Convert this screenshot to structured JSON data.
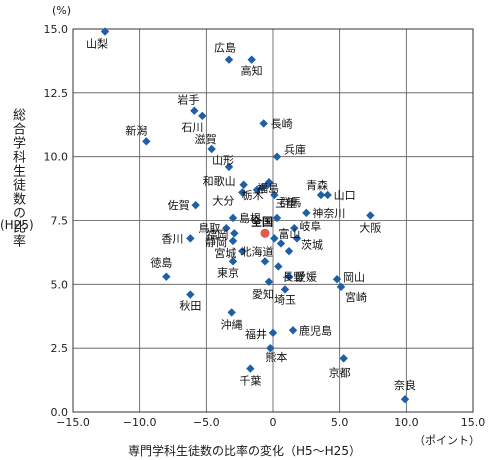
{
  "chart_data": {
    "type": "scatter",
    "xlabel": "専門学科生徒数の比率の変化（H5～H25）",
    "xunit": "（ポイント）",
    "ylabel": "総合学科生徒数の比率",
    "ylabel_sub": "(H25)",
    "yunit": "(%)",
    "xlim": [
      -15,
      15
    ],
    "ylim": [
      0,
      15
    ],
    "xticks": [
      -15,
      -10,
      -5,
      0,
      5,
      10,
      15
    ],
    "yticks": [
      0,
      2.5,
      5,
      7.5,
      10,
      12.5,
      15
    ],
    "xtick_labels": [
      "−15.0",
      "−10.0",
      "−5.0",
      "0",
      "5.0",
      "10.0",
      "15.0"
    ],
    "ytick_labels": [
      "0.0",
      "2.5",
      "5.0",
      "7.5",
      "10.0",
      "12.5",
      "15.0"
    ],
    "grid": true,
    "colors": {
      "point": "#1f5fa8",
      "highlight": "#e05a4f",
      "grid": "#555555"
    },
    "points": [
      {
        "name": "山梨",
        "x": -12.6,
        "y": 14.9
      },
      {
        "name": "広島",
        "x": -3.3,
        "y": 13.8
      },
      {
        "name": "高知",
        "x": -1.6,
        "y": 13.8
      },
      {
        "name": "岩手",
        "x": -5.9,
        "y": 11.8
      },
      {
        "name": "石川",
        "x": -5.3,
        "y": 11.6
      },
      {
        "name": "長崎",
        "x": -0.7,
        "y": 11.3
      },
      {
        "name": "新潟",
        "x": -9.5,
        "y": 10.6
      },
      {
        "name": "滋賀",
        "x": -4.6,
        "y": 10.3
      },
      {
        "name": "兵庫",
        "x": 0.3,
        "y": 10.0
      },
      {
        "name": "山形",
        "x": -3.3,
        "y": 9.6
      },
      {
        "name": "福島",
        "x": -0.3,
        "y": 9.0
      },
      {
        "name": "和歌山",
        "x": -2.2,
        "y": 8.9
      },
      {
        "name": "大分",
        "x": -2.3,
        "y": 8.6
      },
      {
        "name": "",
        "x": -1.2,
        "y": 8.7
      },
      {
        "name": "",
        "x": -0.8,
        "y": 8.8
      },
      {
        "name": "栃木",
        "x": -0.4,
        "y": 8.9
      },
      {
        "name": "群馬",
        "x": 0.1,
        "y": 8.5
      },
      {
        "name": "青森",
        "x": 3.6,
        "y": 8.5
      },
      {
        "name": "山口",
        "x": 4.1,
        "y": 8.5
      },
      {
        "name": "佐賀",
        "x": -5.8,
        "y": 8.1
      },
      {
        "name": "島根",
        "x": -3.0,
        "y": 7.6
      },
      {
        "name": "三重",
        "x": 0.3,
        "y": 7.6
      },
      {
        "name": "神奈川",
        "x": 2.5,
        "y": 7.8
      },
      {
        "name": "大阪",
        "x": 7.3,
        "y": 7.7
      },
      {
        "name": "鳥取",
        "x": -3.5,
        "y": 7.2
      },
      {
        "name": "岐阜",
        "x": 1.6,
        "y": 7.2
      },
      {
        "name": "福岡",
        "x": -2.9,
        "y": 7.0
      },
      {
        "name": "富山",
        "x": 0.1,
        "y": 6.8
      },
      {
        "name": "静岡",
        "x": -3.0,
        "y": 6.7
      },
      {
        "name": "茨城",
        "x": 1.8,
        "y": 6.8
      },
      {
        "name": "香川",
        "x": -6.2,
        "y": 6.8
      },
      {
        "name": "",
        "x": 0.6,
        "y": 6.6
      },
      {
        "name": "",
        "x": 1.2,
        "y": 6.3
      },
      {
        "name": "宮城",
        "x": -2.3,
        "y": 6.3
      },
      {
        "name": "北海道",
        "x": -0.6,
        "y": 5.9
      },
      {
        "name": "東京",
        "x": -3.0,
        "y": 5.9
      },
      {
        "name": "長野",
        "x": 0.4,
        "y": 5.7
      },
      {
        "name": "愛媛",
        "x": 1.2,
        "y": 5.3
      },
      {
        "name": "徳島",
        "x": -8.0,
        "y": 5.3
      },
      {
        "name": "愛知",
        "x": -0.3,
        "y": 5.1
      },
      {
        "name": "岡山",
        "x": 4.8,
        "y": 5.2
      },
      {
        "name": "宮崎",
        "x": 5.1,
        "y": 4.9
      },
      {
        "name": "埼玉",
        "x": 0.9,
        "y": 4.8
      },
      {
        "name": "秋田",
        "x": -6.2,
        "y": 4.6
      },
      {
        "name": "沖縄",
        "x": -3.1,
        "y": 3.9
      },
      {
        "name": "鹿児島",
        "x": 1.5,
        "y": 3.2
      },
      {
        "name": "福井",
        "x": 0.0,
        "y": 3.1
      },
      {
        "name": "熊本",
        "x": -0.2,
        "y": 2.5
      },
      {
        "name": "京都",
        "x": 5.3,
        "y": 2.1
      },
      {
        "name": "千葉",
        "x": -1.7,
        "y": 1.7
      },
      {
        "name": "奈良",
        "x": 9.9,
        "y": 0.5
      }
    ],
    "highlight": {
      "name": "全国",
      "x": -0.6,
      "y": 7.0
    }
  }
}
